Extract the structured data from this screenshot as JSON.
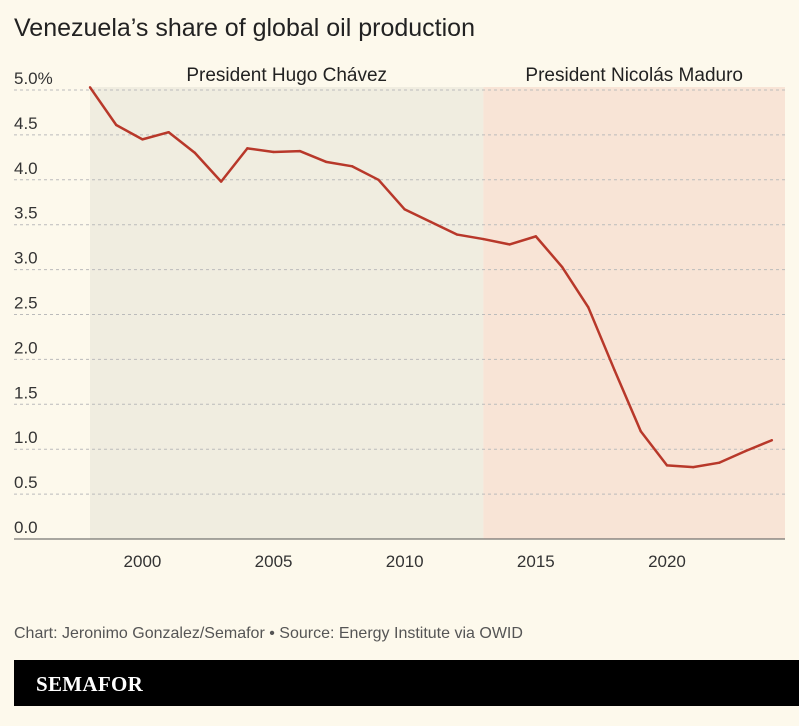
{
  "chart_data": {
    "type": "line",
    "title": "Venezuela’s share of global oil production",
    "xlabel": "",
    "ylabel": "",
    "x": [
      1998,
      1999,
      2000,
      2001,
      2002,
      2003,
      2004,
      2005,
      2006,
      2007,
      2008,
      2009,
      2010,
      2011,
      2012,
      2013,
      2014,
      2015,
      2016,
      2017,
      2018,
      2019,
      2020,
      2021,
      2022,
      2023,
      2024
    ],
    "values": [
      5.03,
      4.61,
      4.45,
      4.53,
      4.3,
      3.98,
      4.35,
      4.31,
      4.32,
      4.2,
      4.15,
      4.0,
      3.67,
      3.53,
      3.39,
      3.34,
      3.28,
      3.37,
      3.03,
      2.58,
      1.88,
      1.2,
      0.82,
      0.8,
      0.85,
      0.98,
      1.1
    ],
    "xlim": [
      1998,
      2024.5
    ],
    "ylim": [
      0,
      5.0
    ],
    "xticks": [
      "2000",
      "2005",
      "2010",
      "2015",
      "2020"
    ],
    "yticks": [
      "0.0",
      "0.5",
      "1.0",
      "1.5",
      "2.0",
      "2.5",
      "3.0",
      "3.5",
      "4.0",
      "4.5",
      "5.0%"
    ],
    "grid": true,
    "line_color": "#b8382a",
    "periods": [
      {
        "label": "President Hugo Chávez",
        "start": 1998,
        "end": 2013,
        "color": "#f0ede0"
      },
      {
        "label": "President Nicolás Maduro",
        "start": 2013,
        "end": 2024.5,
        "color": "#f8e4d6"
      }
    ]
  },
  "footer": "Chart: Jeronimo Gonzalez/Semafor • Source: Energy Institute via OWID",
  "brand": "SEMAFOR"
}
